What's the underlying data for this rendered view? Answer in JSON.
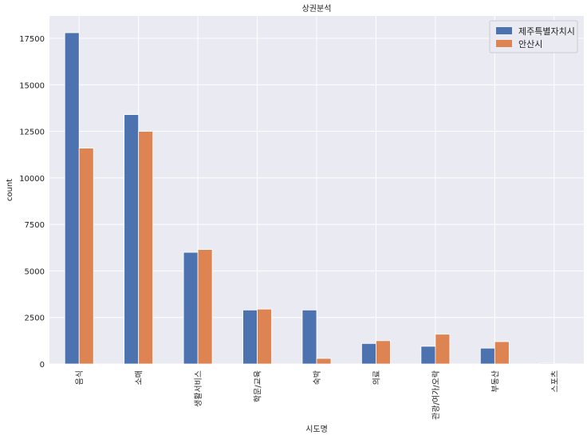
{
  "chart_data": {
    "type": "bar",
    "title": "상권분석",
    "xlabel": "시도명",
    "ylabel": "count",
    "categories": [
      "음식",
      "소매",
      "생활서비스",
      "학문/교육",
      "숙박",
      "의료",
      "관광/여가/오락",
      "부동산",
      "스포츠"
    ],
    "series": [
      {
        "name": "제주특별자치시",
        "color": "#4c72b0",
        "values": [
          17800,
          13400,
          6000,
          2900,
          2900,
          1100,
          950,
          850,
          40
        ]
      },
      {
        "name": "안산시",
        "color": "#dd8452",
        "values": [
          11600,
          12500,
          6150,
          2950,
          300,
          1250,
          1600,
          1200,
          10
        ]
      }
    ],
    "ylim": [
      0,
      18700
    ],
    "yticks": [
      0,
      2500,
      5000,
      7500,
      10000,
      12500,
      15000,
      17500
    ],
    "ytick_labels": [
      "0",
      "2500",
      "5000",
      "7500",
      "10000",
      "12500",
      "15000",
      "17500"
    ],
    "grid": true,
    "background": "#eaeaf2",
    "legend_position": "top-right"
  }
}
